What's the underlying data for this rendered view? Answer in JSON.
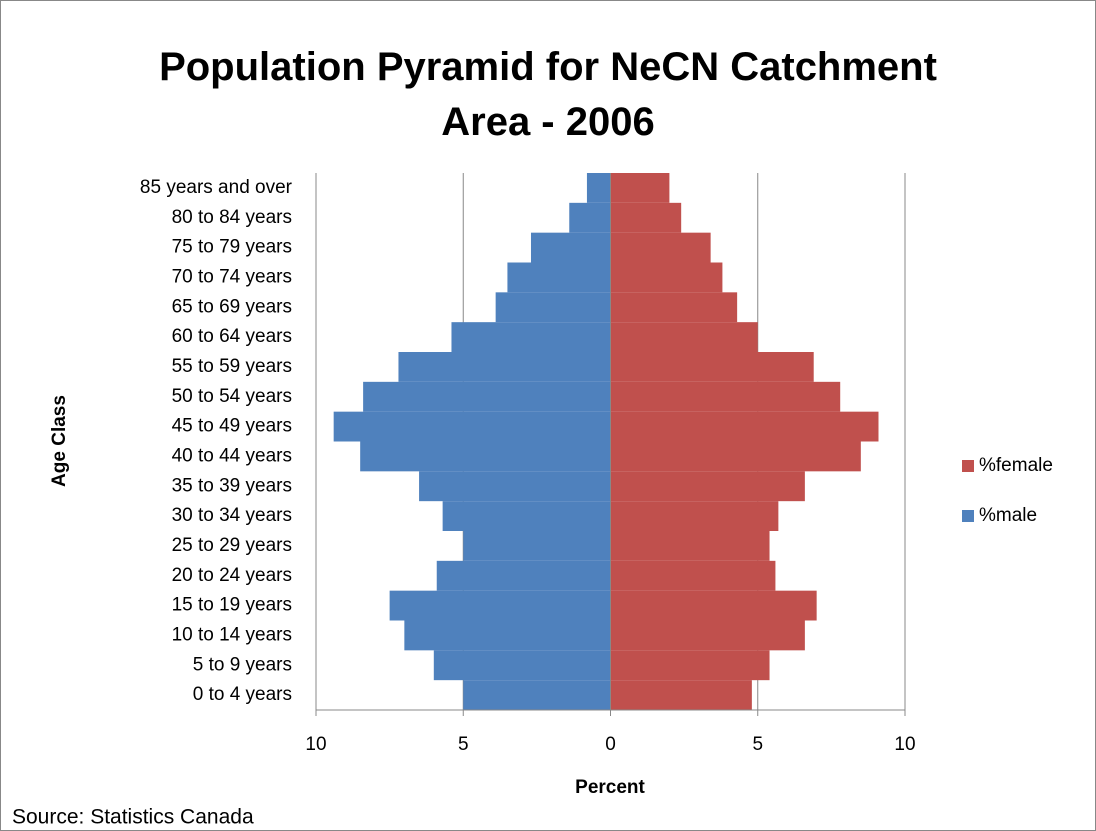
{
  "chart_data": {
    "type": "pyramid",
    "title": "Population Pyramid for NeCN Catchment Area - 2006",
    "x_label": "Percent",
    "y_label": "Age Class",
    "source": "Source: Statistics Canada",
    "categories": [
      "0 to 4 years",
      "5 to 9 years",
      "10 to 14 years",
      "15 to 19 years",
      "20 to 24 years",
      "25 to 29 years",
      "30 to 34 years",
      "35 to 39 years",
      "40 to 44 years",
      "45 to 49 years",
      "50 to 54 years",
      "55 to 59 years",
      "60 to 64 years",
      "65 to 69 years",
      "70 to 74 years",
      "75 to 79 years",
      "80 to 84 years",
      "85 years and over"
    ],
    "series": [
      {
        "name": "%female",
        "color": "#c0504d",
        "values": [
          4.8,
          5.4,
          6.6,
          7.0,
          5.6,
          5.4,
          5.7,
          6.6,
          8.5,
          9.1,
          7.8,
          6.9,
          5.0,
          4.3,
          3.8,
          3.4,
          2.4,
          2.0
        ]
      },
      {
        "name": "%male",
        "color": "#4f81bd",
        "values": [
          -5.0,
          -6.0,
          -7.0,
          -7.5,
          -5.9,
          -5.0,
          -5.7,
          -6.5,
          -8.5,
          -9.4,
          -8.4,
          -7.2,
          -5.4,
          -3.9,
          -3.5,
          -2.7,
          -1.4,
          -0.8
        ]
      }
    ],
    "xlim": [
      -10,
      10
    ],
    "xticks": [
      {
        "value": -10,
        "label": "10"
      },
      {
        "value": -5,
        "label": "5"
      },
      0,
      5,
      10
    ],
    "grid": true,
    "legend": "right"
  }
}
